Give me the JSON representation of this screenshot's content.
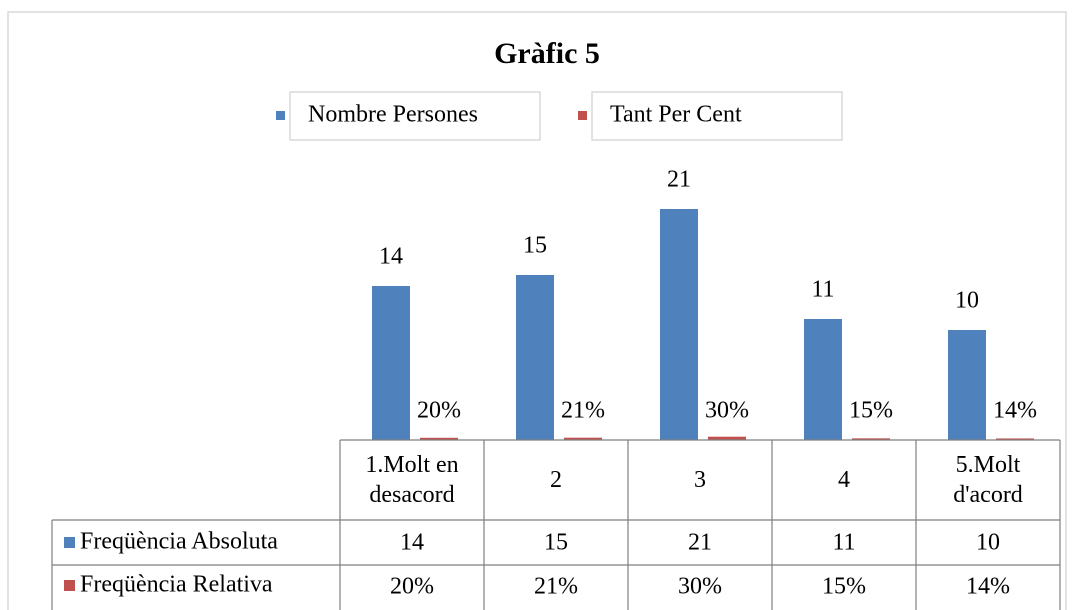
{
  "chart_data": {
    "type": "bar",
    "title": "Gràfic 5",
    "categories": [
      "1.Molt en desacord",
      "2",
      "3",
      "4",
      "5.Molt d'acord"
    ],
    "series": [
      {
        "name": "Nombre Persones",
        "color": "#4f81bd",
        "values": [
          14,
          15,
          21,
          11,
          10
        ]
      },
      {
        "name": "Tant Per Cent",
        "color": "#c0504d",
        "values": [
          0.2,
          0.21,
          0.3,
          0.15,
          0.14
        ],
        "value_labels": [
          "20%",
          "21%",
          "30%",
          "15%",
          "14%"
        ]
      }
    ],
    "table_row_labels": [
      "Freqüència Absoluta",
      "Freqüència Relativa"
    ],
    "ylim": [
      0,
      24
    ]
  }
}
